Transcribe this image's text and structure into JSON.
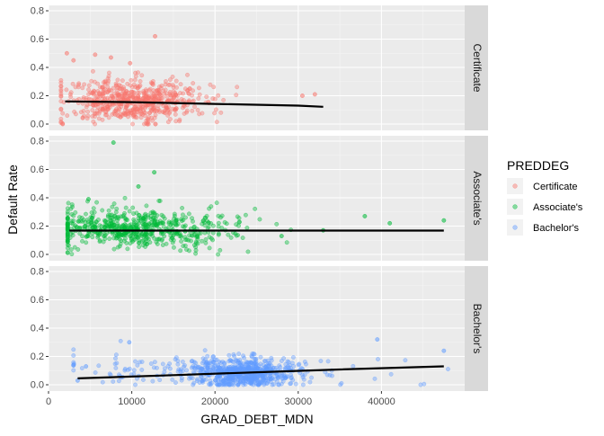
{
  "chart_data": {
    "type": "scatter",
    "facet_by": "PREDDEG",
    "facets": [
      "Certificate",
      "Associate's",
      "Bachelor's"
    ],
    "xlabel": "GRAD_DEBT_MDN",
    "ylabel": "Default Rate",
    "xlim": [
      0,
      50000
    ],
    "x_ticks": [
      0,
      10000,
      20000,
      30000,
      40000
    ],
    "x_tick_labels": [
      "0",
      "10000",
      "20000",
      "30000",
      "40000"
    ],
    "ylim": [
      0,
      0.8
    ],
    "y_ticks": [
      0.0,
      0.2,
      0.4,
      0.6,
      0.8
    ],
    "y_tick_labels": [
      "0.0",
      "0.2",
      "0.4",
      "0.6",
      "0.8"
    ],
    "grid": true,
    "legend": {
      "title": "PREDDEG",
      "position": "right",
      "entries": [
        "Certificate",
        "Associate's",
        "Bachelor's"
      ]
    },
    "colors": {
      "Certificate": "#F8766D",
      "Associate's": "#00BA38",
      "Bachelor's": "#619CFF"
    },
    "panel_background": "#EBEBEB",
    "strip_background": "#D9D9D9",
    "series": [
      {
        "name": "Certificate",
        "clouds": [
          {
            "n": 620,
            "x_mean": 10000,
            "x_sd": 4300,
            "x_min": 1500,
            "x_max": 33000,
            "y_mean": 0.165,
            "y_sd": 0.075,
            "y_min": 0.0,
            "y_max": 0.52
          }
        ],
        "points": [
          {
            "x": 12800,
            "y": 0.62
          },
          {
            "x": 2200,
            "y": 0.5
          },
          {
            "x": 5600,
            "y": 0.49
          },
          {
            "x": 7500,
            "y": 0.47
          },
          {
            "x": 3000,
            "y": 0.45
          },
          {
            "x": 9800,
            "y": 0.43
          },
          {
            "x": 32000,
            "y": 0.21
          },
          {
            "x": 30500,
            "y": 0.2
          },
          {
            "x": 1700,
            "y": 0.0
          }
        ],
        "trend": [
          {
            "x": 2000,
            "y": 0.16
          },
          {
            "x": 10000,
            "y": 0.155
          },
          {
            "x": 20000,
            "y": 0.142
          },
          {
            "x": 30000,
            "y": 0.13
          },
          {
            "x": 33000,
            "y": 0.122
          }
        ]
      },
      {
        "name": "Associate's",
        "clouds": [
          {
            "n": 620,
            "x_mean": 10500,
            "x_sd": 5800,
            "x_min": 2300,
            "x_max": 48000,
            "y_mean": 0.18,
            "y_sd": 0.07,
            "y_min": 0.0,
            "y_max": 0.45
          }
        ],
        "points": [
          {
            "x": 7800,
            "y": 0.79
          },
          {
            "x": 12700,
            "y": 0.58
          },
          {
            "x": 10800,
            "y": 0.48
          },
          {
            "x": 4800,
            "y": 0.39
          },
          {
            "x": 47500,
            "y": 0.24
          },
          {
            "x": 38000,
            "y": 0.27
          },
          {
            "x": 41000,
            "y": 0.22
          },
          {
            "x": 33000,
            "y": 0.17
          },
          {
            "x": 28000,
            "y": 0.13
          }
        ],
        "trend": [
          {
            "x": 2500,
            "y": 0.168
          },
          {
            "x": 25000,
            "y": 0.168
          },
          {
            "x": 47500,
            "y": 0.168
          }
        ]
      },
      {
        "name": "Bachelor's",
        "clouds": [
          {
            "n": 560,
            "x_mean": 23500,
            "x_sd": 3000,
            "x_min": 13000,
            "x_max": 33000,
            "y_mean": 0.08,
            "y_sd": 0.05,
            "y_min": 0.0,
            "y_max": 0.3
          },
          {
            "n": 200,
            "x_mean": 20000,
            "x_sd": 9500,
            "x_min": 3000,
            "x_max": 48000,
            "y_mean": 0.1,
            "y_sd": 0.06,
            "y_min": 0.0,
            "y_max": 0.33
          }
        ],
        "points": [
          {
            "x": 9700,
            "y": 0.3
          },
          {
            "x": 39500,
            "y": 0.32
          },
          {
            "x": 47500,
            "y": 0.24
          },
          {
            "x": 4500,
            "y": 0.13
          },
          {
            "x": 3500,
            "y": 0.03
          }
        ],
        "trend": [
          {
            "x": 3500,
            "y": 0.045
          },
          {
            "x": 15000,
            "y": 0.068
          },
          {
            "x": 25000,
            "y": 0.088
          },
          {
            "x": 35000,
            "y": 0.108
          },
          {
            "x": 47500,
            "y": 0.13
          }
        ]
      }
    ]
  }
}
